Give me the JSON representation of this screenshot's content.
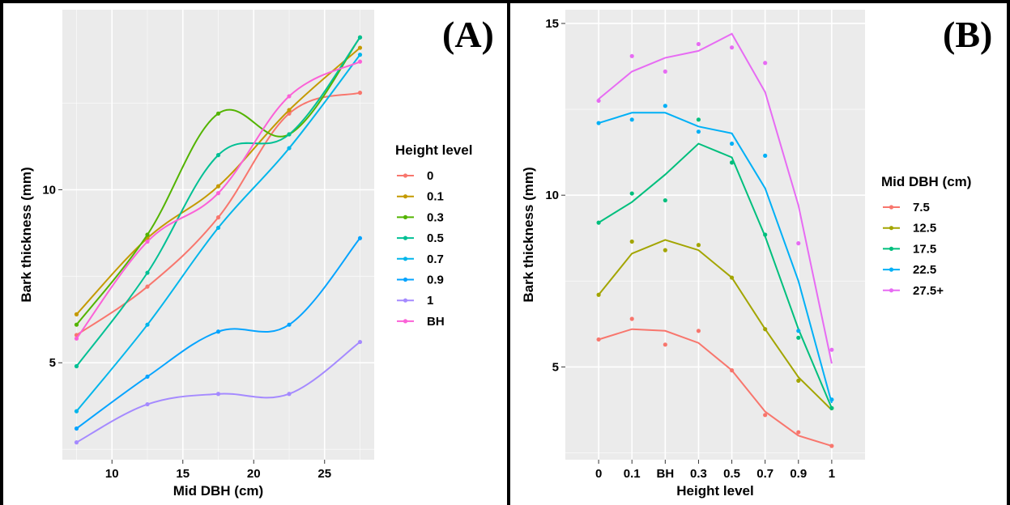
{
  "chart_data": [
    {
      "panel_label": "(A)",
      "type": "line",
      "xlabel": "Mid DBH (cm)",
      "ylabel": "Bark thickness (mm)",
      "xlim": [
        6.5,
        28.5
      ],
      "ylim": [
        2.2,
        15.2
      ],
      "x_ticks": [
        10,
        15,
        20,
        25
      ],
      "y_ticks": [
        5,
        10
      ],
      "grid": true,
      "legend_position": "right",
      "legend_title": "Height level",
      "x": [
        7.5,
        12.5,
        17.5,
        22.5,
        27.5
      ],
      "series": [
        {
          "name": "0",
          "color": "#F8766D",
          "values": [
            5.8,
            7.2,
            9.2,
            12.2,
            12.8
          ]
        },
        {
          "name": "0.1",
          "color": "#C49A00",
          "values": [
            6.4,
            8.6,
            10.1,
            12.3,
            14.1
          ]
        },
        {
          "name": "0.3",
          "color": "#53B400",
          "values": [
            6.1,
            8.7,
            12.2,
            11.6,
            14.4
          ]
        },
        {
          "name": "0.5",
          "color": "#00C094",
          "values": [
            4.9,
            7.6,
            11.0,
            11.6,
            14.4
          ]
        },
        {
          "name": "0.7",
          "color": "#00B6EB",
          "values": [
            3.6,
            6.1,
            8.9,
            11.2,
            13.9
          ]
        },
        {
          "name": "0.9",
          "color": "#06A4FF",
          "values": [
            3.1,
            4.6,
            5.9,
            6.1,
            8.6
          ]
        },
        {
          "name": "1",
          "color": "#A58AFF",
          "values": [
            2.7,
            3.8,
            4.1,
            4.1,
            5.6
          ]
        },
        {
          "name": "BH",
          "color": "#FB61D7",
          "values": [
            5.7,
            8.5,
            9.9,
            12.7,
            13.7
          ]
        }
      ]
    },
    {
      "panel_label": "(B)",
      "type": "line",
      "xlabel": "Height level",
      "ylabel": "Bark thickness (mm)",
      "ylim": [
        2.3,
        15.4
      ],
      "categories": [
        "0",
        "0.1",
        "BH",
        "0.3",
        "0.5",
        "0.7",
        "0.9",
        "1"
      ],
      "y_ticks": [
        5,
        10,
        15
      ],
      "grid": true,
      "legend_position": "right",
      "legend_title": "Mid DBH (cm)",
      "series": [
        {
          "name": "7.5",
          "color": "#F8766D",
          "fit": [
            5.8,
            6.1,
            6.05,
            5.7,
            4.9,
            3.7,
            3.0,
            2.7
          ],
          "points": [
            5.8,
            6.4,
            5.65,
            6.05,
            4.9,
            3.6,
            3.1,
            2.7
          ]
        },
        {
          "name": "12.5",
          "color": "#A3A500",
          "fit": [
            7.1,
            8.3,
            8.7,
            8.4,
            7.6,
            6.1,
            4.7,
            3.75
          ],
          "points": [
            7.1,
            8.65,
            8.4,
            8.55,
            7.6,
            6.1,
            4.6,
            3.8
          ]
        },
        {
          "name": "17.5",
          "color": "#00BF7D",
          "fit": [
            9.2,
            9.8,
            10.6,
            11.5,
            11.1,
            8.8,
            6.1,
            3.8
          ],
          "points": [
            9.2,
            10.05,
            9.85,
            12.2,
            10.95,
            8.85,
            5.85,
            3.8
          ]
        },
        {
          "name": "22.5",
          "color": "#00B0F6",
          "fit": [
            12.1,
            12.4,
            12.4,
            12.0,
            11.8,
            10.2,
            7.5,
            3.95
          ],
          "points": [
            12.1,
            12.2,
            12.6,
            11.85,
            11.5,
            11.15,
            6.05,
            4.05
          ]
        },
        {
          "name": "27.5+",
          "color": "#E76BF3",
          "fit": [
            12.8,
            13.6,
            14.0,
            14.2,
            14.7,
            13.0,
            9.7,
            5.1
          ],
          "points": [
            12.75,
            14.05,
            13.6,
            14.4,
            14.3,
            13.85,
            8.6,
            5.5
          ]
        }
      ]
    }
  ]
}
